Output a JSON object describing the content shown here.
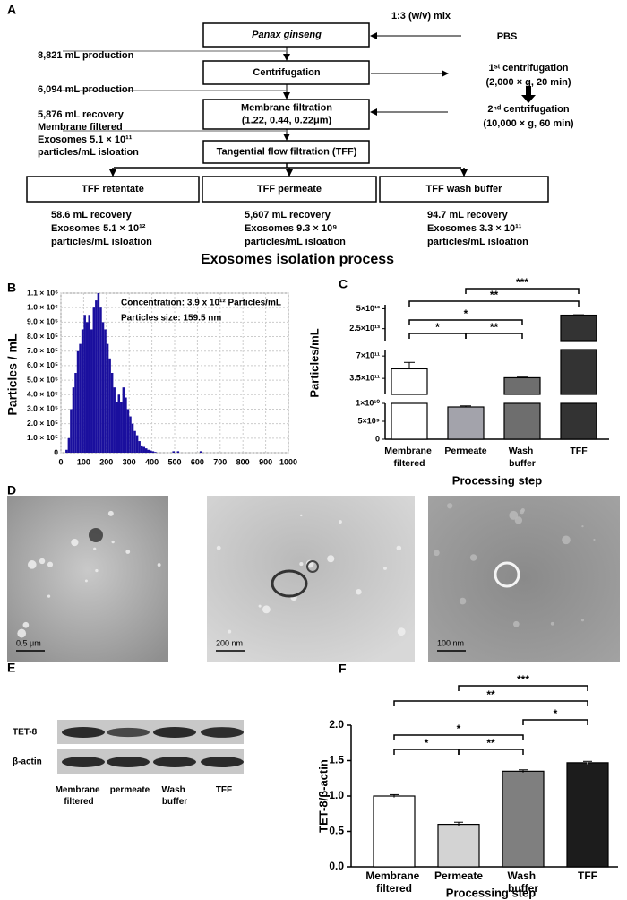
{
  "panel_a": {
    "label": "A",
    "title": "Exosomes isolation process",
    "input_note": "1:3 (w/v) mix",
    "input": "PBS",
    "steps": [
      {
        "lines": [
          "Panax ginseng"
        ]
      },
      {
        "lines": [
          "Centrifugation"
        ]
      },
      {
        "lines": [
          "Membrane filtration",
          "(1.22, 0.44, 0.22μm)"
        ]
      },
      {
        "lines": [
          "Tangential flow filtration (TFF)"
        ]
      }
    ],
    "left_notes": [
      {
        "lines": [
          "8,821 mL production"
        ]
      },
      {
        "lines": [
          "6,094 mL production"
        ]
      },
      {
        "lines": [
          "5,876 mL recovery",
          "Membrane filtered",
          "Exosomes 5.1 × 10¹¹",
          "particles/mL isloation"
        ]
      }
    ],
    "right_notes": [
      {
        "lines": [
          "1ˢᵗ centrifugation",
          "(2,000 × g, 20 min)"
        ]
      },
      {
        "lines": [
          "2ⁿᵈ centrifugation",
          "(10,000 × g, 60 min)"
        ]
      }
    ],
    "outputs": [
      {
        "name": "TFF retentate",
        "lines": [
          "58.6 mL recovery",
          "Exosomes 5.1 × 10¹²",
          "particles/mL isloation"
        ]
      },
      {
        "name": "TFF permeate",
        "lines": [
          "5,607 mL recovery",
          "Exosomes 9.3 × 10⁹",
          "particles/mL isloation"
        ]
      },
      {
        "name": "TFF wash buffer",
        "lines": [
          "94.7 mL recovery",
          "Exosomes 3.3 × 10¹¹",
          "particles/mL isloation"
        ]
      }
    ]
  },
  "chart_data": [
    {
      "panel": "B",
      "type": "histogram",
      "y_label": "Particles / mL",
      "annotations": [
        "Concentration: 3.9 x 10¹² Particles/mL",
        "Particles size: 159.5 nm"
      ],
      "bins": [
        0,
        10,
        20,
        30,
        40,
        50,
        60,
        70,
        80,
        90,
        100,
        110,
        120,
        130,
        140,
        150,
        160,
        170,
        180,
        190,
        200,
        210,
        220,
        230,
        240,
        250,
        260,
        270,
        280,
        290,
        300,
        310,
        320,
        330,
        340,
        350,
        360,
        370,
        380,
        390,
        400,
        410,
        420,
        430,
        440,
        450,
        460,
        470,
        480,
        490,
        500,
        510,
        520,
        530,
        540,
        550,
        560,
        570,
        580,
        590,
        600,
        610,
        620,
        630,
        640
      ],
      "values": [
        0,
        0,
        20000,
        100000,
        300000,
        450000,
        550000,
        700000,
        750000,
        850000,
        950000,
        900000,
        950000,
        850000,
        1000000,
        1050000,
        1100000,
        1000000,
        900000,
        850000,
        750000,
        650000,
        550000,
        450000,
        350000,
        400000,
        350000,
        450000,
        380000,
        300000,
        250000,
        200000,
        150000,
        120000,
        80000,
        50000,
        40000,
        30000,
        20000,
        15000,
        10000,
        5000,
        0,
        0,
        0,
        0,
        0,
        0,
        0,
        10000,
        0,
        10000,
        0,
        0,
        0,
        0,
        0,
        0,
        0,
        0,
        0,
        10000,
        0,
        0
      ],
      "color": "#1a0f9e",
      "xlim": [
        0,
        1000
      ],
      "xticks": [
        0,
        100,
        200,
        300,
        400,
        500,
        600,
        700,
        800,
        900,
        1000
      ],
      "ylim": [
        0,
        1100000
      ],
      "yticks": [
        0,
        {
          "value": 100000,
          "label": "1.0 × 10⁵"
        },
        {
          "value": 200000,
          "label": "2.0 × 10⁵"
        },
        {
          "value": 300000,
          "label": "3.0 × 10⁵"
        },
        {
          "value": 400000,
          "label": "4.0 × 10⁵"
        },
        {
          "value": 500000,
          "label": "5.0 × 10⁵"
        },
        {
          "value": 600000,
          "label": "6.0 × 10⁵"
        },
        {
          "value": 700000,
          "label": "7.0 × 10⁵"
        },
        {
          "value": 800000,
          "label": "8.0 × 10⁵"
        },
        {
          "value": 900000,
          "label": "9.0 × 10⁵"
        },
        {
          "value": 1000000,
          "label": "1.0 × 10⁶"
        },
        {
          "value": 1100000,
          "label": "1.1 × 10⁶"
        }
      ],
      "grid": true
    },
    {
      "panel": "C",
      "type": "broken_bar",
      "x_label": "Processing step",
      "y_label": "Particles/mL",
      "categories": [
        "Membrane filtered",
        "Permeate",
        "Wash buffer",
        "TFF"
      ],
      "values": [
        500000000000.0,
        9000000000.0,
        360000000000.0,
        42000000000000.0
      ],
      "errors": [
        100000000000.0,
        300000000.0,
        10000000000.0,
        500000000000.0
      ],
      "colors": [
        "#ffffff",
        "#a3a3ab",
        "#6e6e6e",
        "#333333"
      ],
      "y_segments": [
        {
          "ylim": [
            0,
            10000000000.0
          ],
          "yticks": [
            0,
            {
              "value": 5000000000.0,
              "label": "5×10⁹"
            },
            {
              "value": 10000000000.0,
              "label": "1×10¹⁰"
            }
          ]
        },
        {
          "ylim": [
            100000000000.0,
            800000000000.0
          ],
          "yticks": [
            {
              "value": 350000000000.0,
              "label": "3.5×10¹¹"
            },
            {
              "value": 700000000000.0,
              "label": "7×10¹¹"
            }
          ]
        },
        {
          "ylim": [
            10000000000000.0,
            55000000000000.0
          ],
          "yticks": [
            {
              "value": 25000000000000.0,
              "label": "2.5×10¹³"
            },
            {
              "value": 50000000000000.0,
              "label": "5×10¹³"
            }
          ]
        }
      ],
      "significance": [
        "***",
        "**",
        "*",
        "*",
        "**"
      ]
    },
    {
      "panel": "F",
      "type": "bar",
      "x_label": "Processing step",
      "y_label": "TET-8/β-actin",
      "categories": [
        "Membrane filtered",
        "Permeate",
        "Wash buffer",
        "TFF"
      ],
      "values": [
        1.0,
        0.6,
        1.35,
        1.47
      ],
      "errors": [
        0.02,
        0.03,
        0.02,
        0.02
      ],
      "colors": [
        "#ffffff",
        "#d3d3d3",
        "#7f7f7f",
        "#1c1c1c"
      ],
      "ylim": [
        0,
        2
      ],
      "yticks": [
        {
          "value": 0,
          "label": "0.0"
        },
        0.5,
        {
          "value": 1,
          "label": "1.0"
        },
        1.5,
        {
          "value": 2,
          "label": "2.0"
        }
      ],
      "significance": [
        "***",
        "**",
        "*",
        "*",
        "*",
        "**"
      ]
    }
  ],
  "panel_d": {
    "label": "D",
    "scale_bars": [
      "0.5 μm",
      "200 nm",
      "100 nm"
    ]
  },
  "panel_e": {
    "label": "E",
    "rows": [
      "TET-8",
      "β-actin"
    ],
    "lanes": [
      "Membrane filtered",
      "permeate",
      "Wash buffer",
      "TFF"
    ]
  }
}
